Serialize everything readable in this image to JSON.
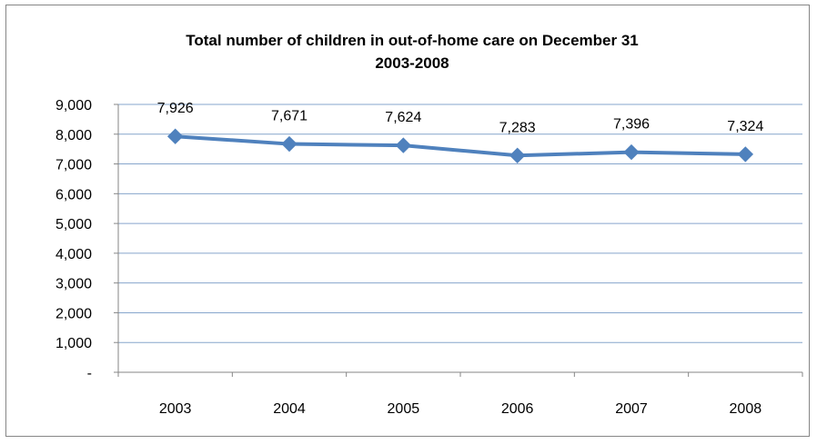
{
  "chart_data": {
    "type": "line",
    "title": "Total number of children in out-of-home care on December 31",
    "subtitle": "2003-2008",
    "categories": [
      "2003",
      "2004",
      "2005",
      "2006",
      "2007",
      "2008"
    ],
    "series": [
      {
        "values": [
          7926,
          7671,
          7624,
          7283,
          7396,
          7324
        ],
        "labels": [
          "7,926",
          "7,671",
          "7,624",
          "7,283",
          "7,396",
          "7,324"
        ],
        "color": "#4F81BD"
      }
    ],
    "y_ticks": [
      "-",
      "1,000",
      "2,000",
      "3,000",
      "4,000",
      "5,000",
      "6,000",
      "7,000",
      "8,000",
      "9,000"
    ],
    "ylim": [
      0,
      9000
    ],
    "grid": true,
    "legend": "none",
    "gridline_color": "#86A5CC",
    "axis_color": "#868686"
  }
}
